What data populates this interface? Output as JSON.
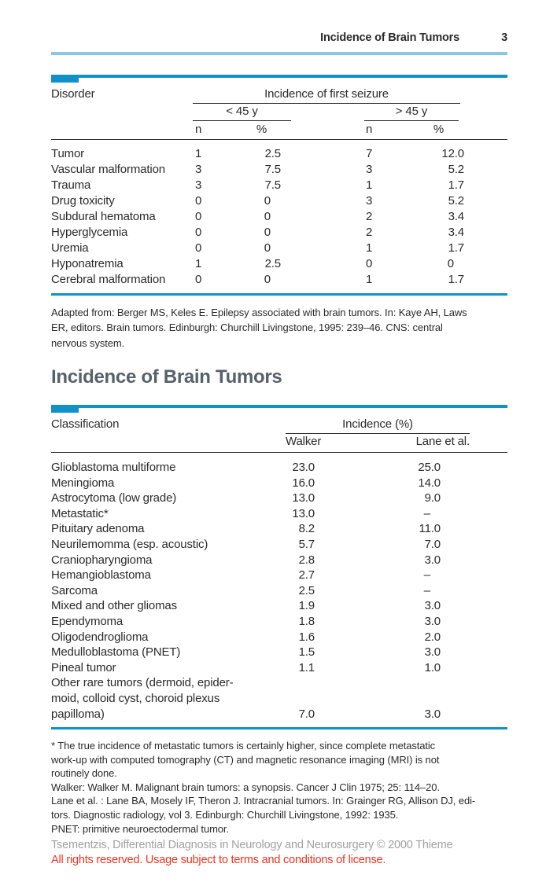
{
  "page_header": {
    "title": "Incidence of Brain Tumors",
    "page_number": "3"
  },
  "seizure_table": {
    "stub_header": "Disorder",
    "span_header": "Incidence of first seizure",
    "group_lt45": "< 45 y",
    "group_gt45": "> 45 y",
    "sub_n": "n",
    "sub_pct": "%",
    "rows": [
      {
        "disorder": "Tumor",
        "n_lt45": "1",
        "pct_lt45": "2.5",
        "n_gt45": "7",
        "pct_gt45": "12.0"
      },
      {
        "disorder": "Vascular malformation",
        "n_lt45": "3",
        "pct_lt45": "7.5",
        "n_gt45": "3",
        "pct_gt45": "5.2"
      },
      {
        "disorder": "Trauma",
        "n_lt45": "3",
        "pct_lt45": "7.5",
        "n_gt45": "1",
        "pct_gt45": "1.7"
      },
      {
        "disorder": "Drug toxicity",
        "n_lt45": "0",
        "pct_lt45": "0",
        "n_gt45": "3",
        "pct_gt45": "5.2"
      },
      {
        "disorder": "Subdural hematoma",
        "n_lt45": "0",
        "pct_lt45": "0",
        "n_gt45": "2",
        "pct_gt45": "3.4"
      },
      {
        "disorder": "Hyperglycemia",
        "n_lt45": "0",
        "pct_lt45": "0",
        "n_gt45": "2",
        "pct_gt45": "3.4"
      },
      {
        "disorder": "Uremia",
        "n_lt45": "0",
        "pct_lt45": "0",
        "n_gt45": "1",
        "pct_gt45": "1.7"
      },
      {
        "disorder": "Hyponatremia",
        "n_lt45": "1",
        "pct_lt45": "2.5",
        "n_gt45": "0",
        "pct_gt45": "0"
      },
      {
        "disorder": "Cerebral malformation",
        "n_lt45": "0",
        "pct_lt45": "0",
        "n_gt45": "1",
        "pct_gt45": "1.7"
      }
    ],
    "caption": "Adapted from: Berger MS, Keles E. Epilepsy associated with brain tumors. In: Kaye AH, Laws\nER, editors. Brain tumors. Edinburgh: Churchill Livingstone, 1995: 239–46. CNS: central\nnervous system."
  },
  "section_title": "Incidence of Brain Tumors",
  "incidence_table": {
    "stub_header": "Classification",
    "span_header": "Incidence (%)",
    "col_walker": "Walker",
    "col_lane": "Lane et al.",
    "rows": [
      {
        "classification": "Glioblastoma multiforme",
        "walker": "23.0",
        "lane": "25.0"
      },
      {
        "classification": "Meningioma",
        "walker": "16.0",
        "lane": "14.0"
      },
      {
        "classification": "Astrocytoma (low grade)",
        "walker": "13.0",
        "lane": "9.0"
      },
      {
        "classification": "Metastatic*",
        "walker": "13.0",
        "lane": "–"
      },
      {
        "classification": "Pituitary adenoma",
        "walker": "8.2",
        "lane": "11.0"
      },
      {
        "classification": "Neurilemomma (esp. acoustic)",
        "walker": "5.7",
        "lane": "7.0"
      },
      {
        "classification": "Craniopharyngioma",
        "walker": "2.8",
        "lane": "3.0"
      },
      {
        "classification": "Hemangioblastoma",
        "walker": "2.7",
        "lane": "–"
      },
      {
        "classification": "Sarcoma",
        "walker": "2.5",
        "lane": "–"
      },
      {
        "classification": "Mixed and other gliomas",
        "walker": "1.9",
        "lane": "3.0"
      },
      {
        "classification": "Ependymoma",
        "walker": "1.8",
        "lane": "3.0"
      },
      {
        "classification": "Oligodendroglioma",
        "walker": "1.6",
        "lane": "2.0"
      },
      {
        "classification": "Medulloblastoma (PNET)",
        "walker": "1.5",
        "lane": "3.0"
      },
      {
        "classification": "Pineal tumor",
        "walker": "1.1",
        "lane": "1.0"
      },
      {
        "classification": "Other rare tumors (dermoid, epider-\nmoid, colloid cyst, choroid plexus\npapilloma)",
        "walker": "7.0",
        "lane": "3.0"
      }
    ],
    "footnotes": [
      "* The true incidence of metastatic tumors is certainly higher, since complete metastatic\nwork-up with computed tomography (CT) and magnetic resonance imaging (MRI) is not\nroutinely done.",
      "Walker: Walker M. Malignant brain tumors: a synopsis. Cancer J Clin 1975; 25: 114–20.",
      "Lane et al. : Lane BA, Mosely IF, Theron J. Intracranial tumors. In: Grainger RG, Allison DJ, edi-\ntors. Diagnostic radiology, vol 3. Edinburgh: Churchill Livingstone, 1992: 1935.",
      "PNET: primitive neuroectodermal tumor."
    ]
  },
  "copyright": {
    "line1": "Tsementzis, Differential Diagnosis in Neurology and Neurosurgery © 2000 Thieme",
    "line2": "All rights reserved. Usage subject to terms and conditions of license."
  },
  "colors": {
    "accent_blue": "#1091c9",
    "light_blue": "#8cc6e3",
    "heading_gray": "#57616b",
    "copyright_gray": "#a2a2a2",
    "notice_red": "#f5311d"
  }
}
